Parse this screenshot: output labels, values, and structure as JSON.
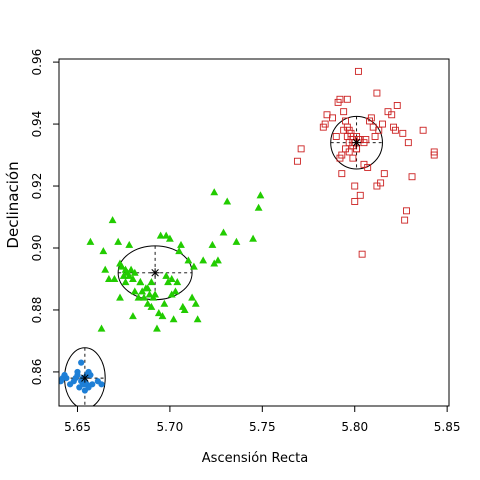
{
  "chart_data": {
    "type": "scatter",
    "title": "",
    "xlabel": "Ascensión Recta",
    "ylabel": "Declinación",
    "xlim": [
      5.64,
      5.851
    ],
    "ylim": [
      0.849,
      0.961
    ],
    "x_ticks": [
      5.65,
      5.7,
      5.75,
      5.8,
      5.85
    ],
    "x_tick_labels": [
      "5.65",
      "5.70",
      "5.75",
      "5.80",
      "5.85"
    ],
    "y_ticks": [
      0.86,
      0.88,
      0.9,
      0.92,
      0.94,
      0.96
    ],
    "y_tick_labels": [
      "0.86",
      "0.88",
      "0.90",
      "0.92",
      "0.94",
      "0.96"
    ],
    "grid": false,
    "legend": "none",
    "series": [
      {
        "marker": "filled-circle",
        "color": "#1e7fd6",
        "centroid": [
          5.654,
          0.858
        ],
        "ellipse_radii": [
          0.011,
          0.0098
        ],
        "points": [
          [
            5.648,
            0.857
          ],
          [
            5.649,
            0.858
          ],
          [
            5.65,
            0.859
          ],
          [
            5.65,
            0.86
          ],
          [
            5.651,
            0.855
          ],
          [
            5.652,
            0.857
          ],
          [
            5.652,
            0.863
          ],
          [
            5.653,
            0.856
          ],
          [
            5.653,
            0.858
          ],
          [
            5.654,
            0.854
          ],
          [
            5.654,
            0.857
          ],
          [
            5.655,
            0.859
          ],
          [
            5.655,
            0.856
          ],
          [
            5.656,
            0.855
          ],
          [
            5.657,
            0.859
          ],
          [
            5.658,
            0.856
          ],
          [
            5.661,
            0.857
          ],
          [
            5.641,
            0.857
          ],
          [
            5.642,
            0.858
          ],
          [
            5.644,
            0.858
          ],
          [
            5.643,
            0.859
          ],
          [
            5.646,
            0.856
          ],
          [
            5.656,
            0.86
          ],
          [
            5.663,
            0.856
          ]
        ]
      },
      {
        "marker": "filled-triangle",
        "color": "#22cc00",
        "centroid": [
          5.692,
          0.892
        ],
        "ellipse_radii": [
          0.02,
          0.0087
        ],
        "points": [
          [
            5.657,
            0.902
          ],
          [
            5.664,
            0.899
          ],
          [
            5.665,
            0.893
          ],
          [
            5.667,
            0.89
          ],
          [
            5.669,
            0.909
          ],
          [
            5.672,
            0.902
          ],
          [
            5.673,
            0.895
          ],
          [
            5.674,
            0.894
          ],
          [
            5.675,
            0.891
          ],
          [
            5.676,
            0.893
          ],
          [
            5.677,
            0.892
          ],
          [
            5.678,
            0.891
          ],
          [
            5.679,
            0.893
          ],
          [
            5.68,
            0.89
          ],
          [
            5.681,
            0.892
          ],
          [
            5.681,
            0.886
          ],
          [
            5.683,
            0.884
          ],
          [
            5.684,
            0.889
          ],
          [
            5.685,
            0.886
          ],
          [
            5.686,
            0.884
          ],
          [
            5.687,
            0.887
          ],
          [
            5.688,
            0.882
          ],
          [
            5.689,
            0.885
          ],
          [
            5.69,
            0.889
          ],
          [
            5.69,
            0.881
          ],
          [
            5.691,
            0.884
          ],
          [
            5.692,
            0.885
          ],
          [
            5.693,
            0.874
          ],
          [
            5.694,
            0.879
          ],
          [
            5.695,
            0.904
          ],
          [
            5.696,
            0.878
          ],
          [
            5.697,
            0.882
          ],
          [
            5.698,
            0.891
          ],
          [
            5.699,
            0.889
          ],
          [
            5.7,
            0.903
          ],
          [
            5.701,
            0.89
          ],
          [
            5.702,
            0.877
          ],
          [
            5.703,
            0.886
          ],
          [
            5.704,
            0.889
          ],
          [
            5.705,
            0.899
          ],
          [
            5.706,
            0.901
          ],
          [
            5.707,
            0.881
          ],
          [
            5.708,
            0.88
          ],
          [
            5.71,
            0.896
          ],
          [
            5.712,
            0.884
          ],
          [
            5.713,
            0.894
          ],
          [
            5.714,
            0.882
          ],
          [
            5.715,
            0.877
          ],
          [
            5.718,
            0.896
          ],
          [
            5.723,
            0.901
          ],
          [
            5.724,
            0.895
          ],
          [
            5.724,
            0.918
          ],
          [
            5.726,
            0.896
          ],
          [
            5.729,
            0.905
          ],
          [
            5.731,
            0.915
          ],
          [
            5.736,
            0.902
          ],
          [
            5.745,
            0.903
          ],
          [
            5.748,
            0.913
          ],
          [
            5.749,
            0.917
          ],
          [
            5.663,
            0.874
          ],
          [
            5.673,
            0.884
          ],
          [
            5.676,
            0.889
          ],
          [
            5.678,
            0.901
          ],
          [
            5.68,
            0.878
          ],
          [
            5.698,
            0.904
          ],
          [
            5.701,
            0.885
          ],
          [
            5.67,
            0.89
          ],
          [
            5.684,
            0.889
          ],
          [
            5.688,
            0.887
          ]
        ]
      },
      {
        "marker": "open-square",
        "color": "#cc2222",
        "centroid": [
          5.801,
          0.934
        ],
        "ellipse_radii": [
          0.014,
          0.0085
        ],
        "points": [
          [
            5.769,
            0.928
          ],
          [
            5.771,
            0.932
          ],
          [
            5.783,
            0.939
          ],
          [
            5.784,
            0.94
          ],
          [
            5.785,
            0.943
          ],
          [
            5.788,
            0.942
          ],
          [
            5.79,
            0.936
          ],
          [
            5.791,
            0.947
          ],
          [
            5.792,
            0.948
          ],
          [
            5.792,
            0.929
          ],
          [
            5.793,
            0.93
          ],
          [
            5.793,
            0.924
          ],
          [
            5.794,
            0.938
          ],
          [
            5.794,
            0.944
          ],
          [
            5.795,
            0.941
          ],
          [
            5.795,
            0.932
          ],
          [
            5.796,
            0.936
          ],
          [
            5.796,
            0.948
          ],
          [
            5.797,
            0.934
          ],
          [
            5.797,
            0.931
          ],
          [
            5.798,
            0.936
          ],
          [
            5.798,
            0.937
          ],
          [
            5.799,
            0.935
          ],
          [
            5.799,
            0.929
          ],
          [
            5.8,
            0.934
          ],
          [
            5.8,
            0.92
          ],
          [
            5.801,
            0.936
          ],
          [
            5.801,
            0.932
          ],
          [
            5.802,
            0.957
          ],
          [
            5.802,
            0.935
          ],
          [
            5.803,
            0.935
          ],
          [
            5.803,
            0.917
          ],
          [
            5.804,
            0.898
          ],
          [
            5.805,
            0.934
          ],
          [
            5.805,
            0.927
          ],
          [
            5.806,
            0.935
          ],
          [
            5.807,
            0.926
          ],
          [
            5.808,
            0.941
          ],
          [
            5.809,
            0.942
          ],
          [
            5.81,
            0.939
          ],
          [
            5.811,
            0.936
          ],
          [
            5.812,
            0.95
          ],
          [
            5.812,
            0.92
          ],
          [
            5.813,
            0.938
          ],
          [
            5.814,
            0.921
          ],
          [
            5.815,
            0.94
          ],
          [
            5.816,
            0.924
          ],
          [
            5.818,
            0.944
          ],
          [
            5.82,
            0.943
          ],
          [
            5.821,
            0.939
          ],
          [
            5.822,
            0.938
          ],
          [
            5.823,
            0.946
          ],
          [
            5.826,
            0.937
          ],
          [
            5.827,
            0.909
          ],
          [
            5.828,
            0.912
          ],
          [
            5.829,
            0.934
          ],
          [
            5.831,
            0.923
          ],
          [
            5.837,
            0.938
          ],
          [
            5.843,
            0.931
          ],
          [
            5.843,
            0.93
          ],
          [
            5.796,
            0.939
          ],
          [
            5.799,
            0.933
          ],
          [
            5.801,
            0.932
          ],
          [
            5.8,
            0.915
          ],
          [
            5.797,
            0.938
          ]
        ]
      }
    ]
  }
}
